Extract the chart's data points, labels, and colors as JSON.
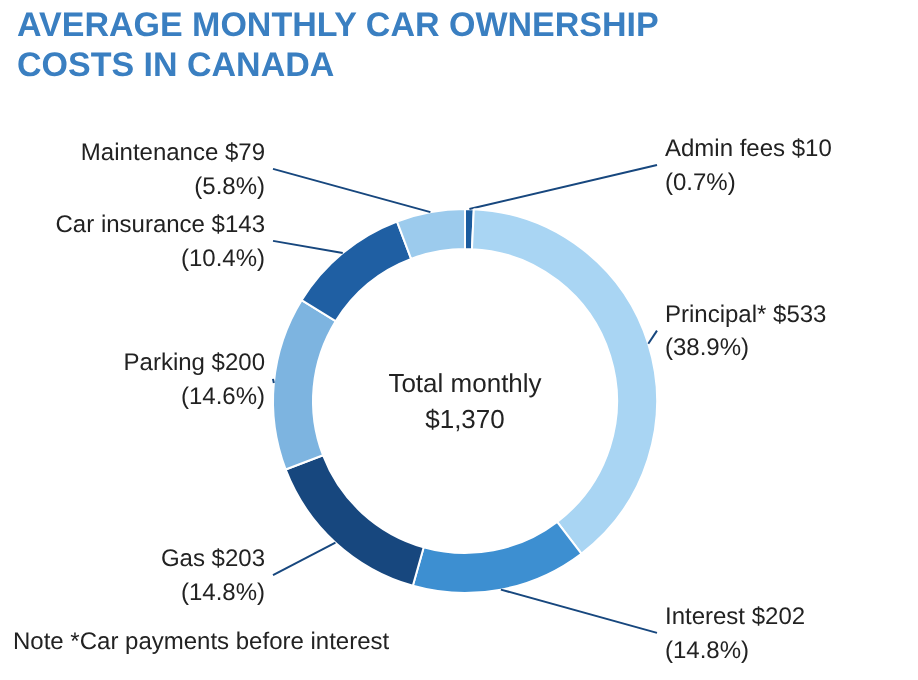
{
  "chart_data": {
    "type": "donut",
    "title": "AVERAGE MONTHLY CAR OWNERSHIP COSTS IN CANADA",
    "categories": [
      "Admin fees",
      "Principal*",
      "Interest",
      "Gas",
      "Parking",
      "Car insurance",
      "Maintenance"
    ],
    "values": [
      10,
      533,
      202,
      203,
      200,
      143,
      79
    ],
    "colors": [
      "#1b5c9e",
      "#a9d5f3",
      "#3d8fd1",
      "#17477e",
      "#7db4e0",
      "#1f5fa3",
      "#9ccbed"
    ],
    "value_labels": [
      "$10\n(0.7%)",
      "$533\n(38.9%)",
      "$202\n(14.8%)",
      "$203\n(14.8%)",
      "$200\n(14.6%)",
      "$143\n(10.4%)",
      "$79\n(5.8%)"
    ],
    "annotations": [
      "Total monthly\n$1,370",
      "Note *Car payments before interest"
    ]
  }
}
